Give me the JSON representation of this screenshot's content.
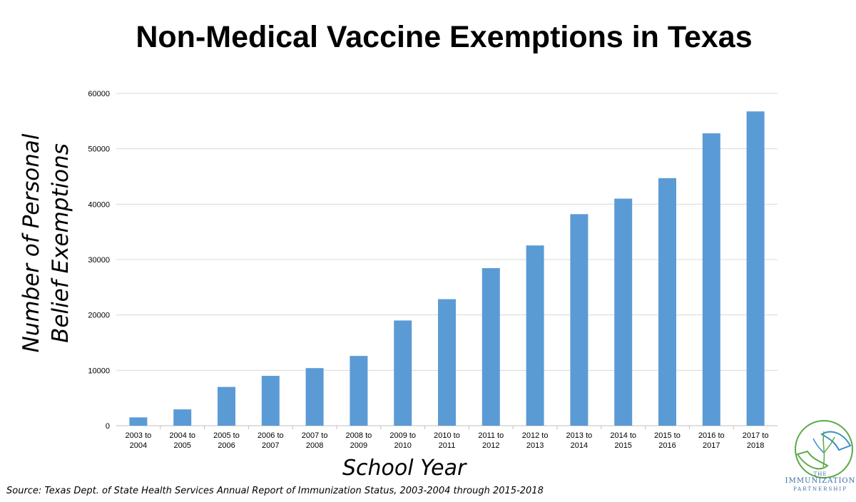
{
  "title": "Non-Medical Vaccine Exemptions in Texas",
  "ylabel_line1": "Number of Personal",
  "ylabel_line2": "Belief Exemptions",
  "xlabel": "School Year",
  "source": "Source: Texas Dept. of State Health Services Annual Report of Immunization Status, 2003-2004 through 2015-2018",
  "logo": {
    "the": "THE",
    "name": "IMMUNIZATION",
    "partner": "PARTNERSHIP"
  },
  "colors": {
    "bar": "#5b9bd5",
    "grid": "#d9d9d9",
    "axis": "#bfbfbf"
  },
  "chart_data": {
    "type": "bar",
    "categories": [
      [
        "2003 to",
        "2004"
      ],
      [
        "2004 to",
        "2005"
      ],
      [
        "2005 to",
        "2006"
      ],
      [
        "2006 to",
        "2007"
      ],
      [
        "2007 to",
        "2008"
      ],
      [
        "2008 to",
        "2009"
      ],
      [
        "2009 to",
        "2010"
      ],
      [
        "2010 to",
        "2011"
      ],
      [
        "2011 to",
        "2012"
      ],
      [
        "2012 to",
        "2013"
      ],
      [
        "2013 to",
        "2014"
      ],
      [
        "2014 to",
        "2015"
      ],
      [
        "2015 to",
        "2016"
      ],
      [
        "2016 to",
        "2017"
      ],
      [
        "2017 to",
        "2018"
      ]
    ],
    "values": [
      1500,
      2950,
      7000,
      9000,
      10400,
      12600,
      19000,
      22850,
      28450,
      32550,
      38200,
      41000,
      44700,
      52800,
      56750
    ],
    "ylim": [
      0,
      60000
    ],
    "yticks": [
      0,
      10000,
      20000,
      30000,
      40000,
      50000,
      60000
    ],
    "grid": true
  }
}
